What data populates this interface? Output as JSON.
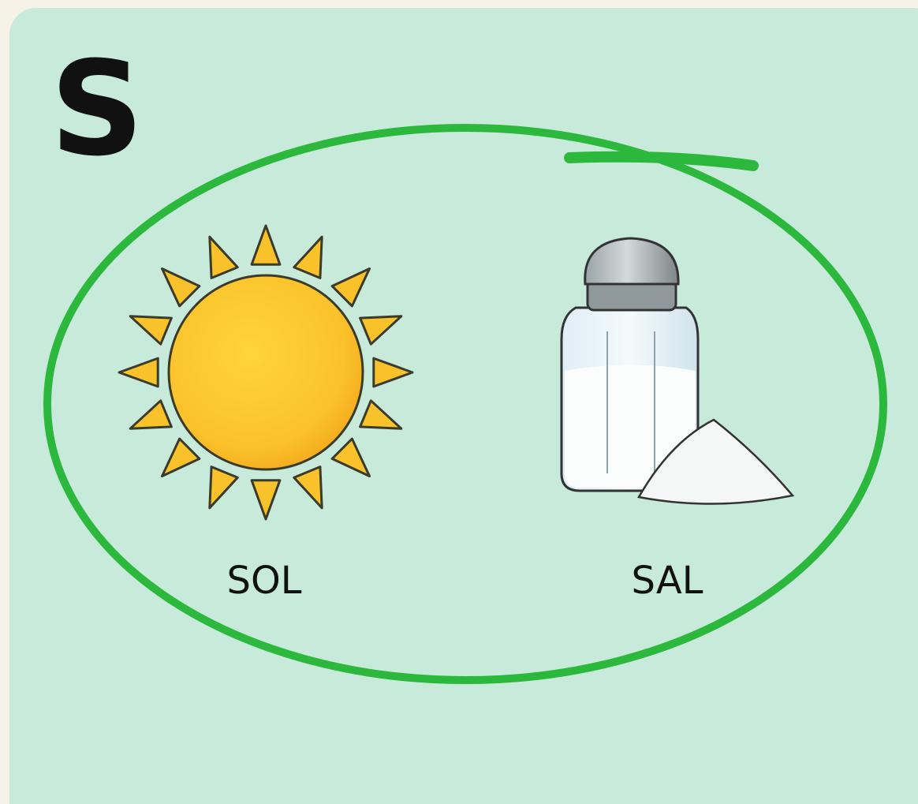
{
  "letter": "S",
  "items": [
    {
      "label": "SOL"
    },
    {
      "label": "SAL"
    }
  ]
}
